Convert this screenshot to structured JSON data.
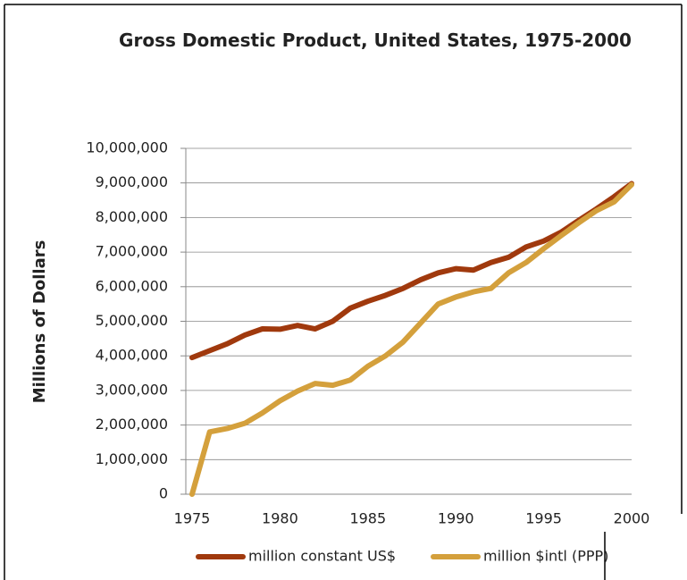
{
  "chart_data": {
    "type": "line",
    "title": "Gross Domestic Product, United States, 1975-2000",
    "y_label": "Millions of Dollars",
    "x": [
      1975,
      1976,
      1977,
      1978,
      1979,
      1980,
      1981,
      1982,
      1983,
      1984,
      1985,
      1986,
      1987,
      1988,
      1989,
      1990,
      1991,
      1992,
      1993,
      1994,
      1995,
      1996,
      1997,
      1998,
      1999,
      2000
    ],
    "series": [
      {
        "name": "million constant US$",
        "color": "#a0390d",
        "values": [
          3950000,
          4150000,
          4350000,
          4600000,
          4780000,
          4770000,
          4880000,
          4780000,
          5000000,
          5380000,
          5580000,
          5750000,
          5950000,
          6200000,
          6400000,
          6520000,
          6480000,
          6700000,
          6850000,
          7150000,
          7320000,
          7580000,
          7920000,
          8250000,
          8600000,
          8980000
        ]
      },
      {
        "name": "million $intl (PPP)",
        "color": "#d4a03c",
        "values": [
          0,
          1800000,
          1900000,
          2050000,
          2350000,
          2700000,
          2980000,
          3200000,
          3150000,
          3300000,
          3700000,
          4000000,
          4400000,
          4950000,
          5500000,
          5700000,
          5850000,
          5950000,
          6400000,
          6700000,
          7100000,
          7480000,
          7850000,
          8200000,
          8450000,
          8950000
        ]
      }
    ],
    "xlim": [
      1975,
      2000
    ],
    "xticks": [
      1975,
      1980,
      1985,
      1990,
      1995,
      2000
    ],
    "ylim": [
      0,
      10000000
    ],
    "yticks": [
      0,
      {
        "value": 1000000,
        "label": "1,000,000"
      },
      {
        "value": 2000000,
        "label": "2,000,000"
      },
      {
        "value": 3000000,
        "label": "3,000,000"
      },
      {
        "value": 4000000,
        "label": "4,000,000"
      },
      {
        "value": 5000000,
        "label": "5,000,000"
      },
      {
        "value": 6000000,
        "label": "6,000,000"
      },
      {
        "value": 7000000,
        "label": "7,000,000"
      },
      {
        "value": 8000000,
        "label": "8,000,000"
      },
      {
        "value": 9000000,
        "label": "9,000,000"
      },
      {
        "value": 10000000,
        "label": "10,000,000"
      }
    ],
    "grid": true,
    "legend": "bottom"
  }
}
